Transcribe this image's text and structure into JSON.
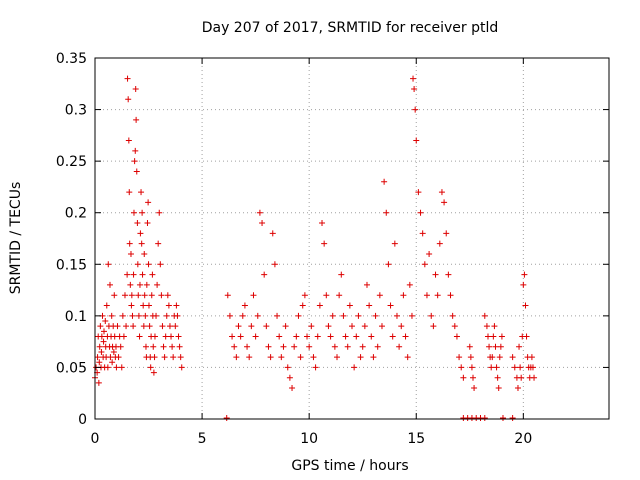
{
  "chart_data": {
    "type": "scatter",
    "title": "Day 207 of 2017, SRMTID for receiver ptld",
    "xlabel": "GPS time / hours",
    "ylabel": "SRMTID / TECUs",
    "xlim": [
      0,
      24
    ],
    "ylim": [
      0,
      0.35
    ],
    "xticks": [
      0,
      5,
      10,
      15,
      20
    ],
    "yticks": [
      0,
      0.05,
      0.1,
      0.15,
      0.2,
      0.25,
      0.3,
      0.35
    ],
    "xtick_labels": [
      "0",
      "5",
      "10",
      "15",
      "20"
    ],
    "ytick_labels": [
      "0",
      "0.05",
      "0.1",
      "0.15",
      "0.2",
      "0.25",
      "0.3",
      "0.35"
    ],
    "grid": true,
    "marker": "+",
    "color": "#dd0000",
    "series": [
      {
        "x": [
          0.0,
          0.05,
          0.1,
          0.12,
          0.15,
          0.18,
          0.2,
          0.22,
          0.25,
          0.28,
          0.3,
          0.32,
          0.35,
          0.38,
          0.4,
          0.42,
          0.45,
          0.48,
          0.5,
          0.52,
          0.55,
          0.58,
          0.6,
          0.62,
          0.65,
          0.68,
          0.7,
          0.72,
          0.75,
          0.78,
          0.8,
          0.82,
          0.85,
          0.88,
          0.9,
          0.92,
          0.95,
          0.98,
          1.0,
          1.05,
          1.1,
          1.15,
          1.2,
          1.25,
          1.3,
          1.35,
          1.4,
          1.45,
          1.5,
          1.52,
          1.55,
          1.58,
          1.6,
          1.62,
          1.65,
          1.68,
          1.7,
          1.72,
          1.75,
          1.78,
          1.8,
          1.82,
          1.85,
          1.88,
          1.9,
          1.92,
          1.95,
          1.98,
          2.0,
          2.02,
          2.05,
          2.08,
          2.1,
          2.12,
          2.15,
          2.18,
          2.2,
          2.22,
          2.25,
          2.28,
          2.3,
          2.32,
          2.35,
          2.38,
          2.4,
          2.42,
          2.45,
          2.48,
          2.5,
          2.52,
          2.55,
          2.58,
          2.6,
          2.62,
          2.65,
          2.68,
          2.7,
          2.72,
          2.75,
          2.78,
          2.8,
          2.85,
          2.9,
          2.95,
          3.0,
          3.05,
          3.1,
          3.15,
          3.2,
          3.25,
          3.3,
          3.35,
          3.4,
          3.45,
          3.5,
          3.55,
          3.6,
          3.65,
          3.7,
          3.75,
          3.8,
          3.85,
          3.9,
          3.95,
          4.0,
          4.05
        ],
        "y": [
          0.04,
          0.05,
          0.045,
          0.06,
          0.08,
          0.035,
          0.055,
          0.07,
          0.09,
          0.05,
          0.065,
          0.08,
          0.1,
          0.06,
          0.075,
          0.085,
          0.05,
          0.095,
          0.07,
          0.06,
          0.11,
          0.08,
          0.05,
          0.15,
          0.09,
          0.07,
          0.13,
          0.06,
          0.08,
          0.1,
          0.055,
          0.07,
          0.09,
          0.065,
          0.12,
          0.08,
          0.06,
          0.07,
          0.05,
          0.09,
          0.06,
          0.08,
          0.07,
          0.05,
          0.1,
          0.08,
          0.12,
          0.09,
          0.14,
          0.33,
          0.31,
          0.27,
          0.22,
          0.17,
          0.13,
          0.16,
          0.11,
          0.12,
          0.1,
          0.09,
          0.14,
          0.2,
          0.25,
          0.26,
          0.32,
          0.29,
          0.24,
          0.19,
          0.15,
          0.12,
          0.1,
          0.08,
          0.13,
          0.18,
          0.22,
          0.17,
          0.2,
          0.14,
          0.11,
          0.09,
          0.16,
          0.12,
          0.1,
          0.07,
          0.06,
          0.13,
          0.19,
          0.21,
          0.15,
          0.11,
          0.09,
          0.06,
          0.05,
          0.08,
          0.12,
          0.14,
          0.1,
          0.07,
          0.045,
          0.06,
          0.08,
          0.1,
          0.13,
          0.17,
          0.2,
          0.15,
          0.12,
          0.09,
          0.07,
          0.06,
          0.08,
          0.1,
          0.12,
          0.11,
          0.09,
          0.08,
          0.07,
          0.06,
          0.1,
          0.09,
          0.11,
          0.1,
          0.08,
          0.07,
          0.06,
          0.05
        ]
      },
      {
        "x": [
          6.2,
          6.3,
          6.4,
          6.5,
          6.6,
          6.7,
          6.8,
          6.9,
          7.0,
          7.1,
          7.2,
          7.3,
          7.4,
          7.5,
          7.6,
          7.7,
          7.8,
          7.9,
          8.0,
          8.1,
          8.2,
          8.3,
          8.4,
          8.5,
          8.6,
          8.7,
          8.8,
          8.9,
          9.0,
          9.1,
          9.2,
          9.3,
          9.4,
          9.5,
          9.6,
          9.7,
          9.8,
          9.9,
          10.0,
          10.1,
          10.2,
          10.3,
          10.4,
          10.5,
          10.6,
          10.7,
          10.8,
          10.9,
          11.0,
          11.1,
          11.2,
          11.3,
          11.4,
          11.5,
          11.6,
          11.7,
          11.8,
          11.9,
          12.0,
          12.1,
          12.2,
          12.3,
          12.4,
          12.5,
          12.6,
          12.7,
          12.8,
          12.9,
          13.0,
          13.1,
          13.2,
          13.3,
          13.4,
          13.5,
          13.6,
          13.7,
          13.8,
          13.9,
          14.0,
          14.1,
          14.2,
          14.3,
          14.4,
          14.5,
          14.6,
          14.7,
          14.8,
          14.85,
          14.9,
          14.95,
          15.0,
          15.1,
          15.2,
          15.3,
          15.4,
          15.5,
          15.6,
          15.7,
          15.8,
          15.9,
          16.0,
          16.1,
          16.2,
          16.3,
          16.4,
          16.5,
          16.6,
          16.7,
          16.8,
          16.9,
          17.0,
          17.1,
          17.2
        ],
        "y": [
          0.12,
          0.1,
          0.08,
          0.07,
          0.06,
          0.09,
          0.08,
          0.1,
          0.11,
          0.07,
          0.06,
          0.09,
          0.12,
          0.08,
          0.1,
          0.2,
          0.19,
          0.14,
          0.09,
          0.07,
          0.06,
          0.18,
          0.15,
          0.1,
          0.08,
          0.06,
          0.07,
          0.09,
          0.05,
          0.04,
          0.03,
          0.07,
          0.08,
          0.1,
          0.06,
          0.11,
          0.12,
          0.08,
          0.07,
          0.09,
          0.06,
          0.05,
          0.08,
          0.11,
          0.19,
          0.17,
          0.12,
          0.09,
          0.08,
          0.1,
          0.07,
          0.06,
          0.12,
          0.14,
          0.1,
          0.08,
          0.07,
          0.11,
          0.09,
          0.05,
          0.08,
          0.1,
          0.06,
          0.07,
          0.09,
          0.13,
          0.11,
          0.08,
          0.06,
          0.1,
          0.07,
          0.12,
          0.09,
          0.23,
          0.2,
          0.15,
          0.11,
          0.08,
          0.17,
          0.1,
          0.07,
          0.09,
          0.12,
          0.08,
          0.06,
          0.13,
          0.1,
          0.33,
          0.32,
          0.3,
          0.27,
          0.22,
          0.2,
          0.18,
          0.15,
          0.12,
          0.16,
          0.1,
          0.09,
          0.14,
          0.12,
          0.17,
          0.22,
          0.21,
          0.18,
          0.14,
          0.12,
          0.1,
          0.09,
          0.08,
          0.06,
          0.05,
          0.04
        ]
      },
      {
        "x": [
          17.5,
          17.55,
          17.6,
          17.65,
          17.7,
          18.2,
          18.3,
          18.35,
          18.4,
          18.45,
          18.5,
          18.55,
          18.6,
          18.65,
          18.7,
          18.75,
          18.8,
          18.85,
          18.9,
          18.95,
          19.0,
          19.5,
          19.6,
          19.7,
          19.75,
          19.8,
          19.85,
          19.9,
          19.95,
          20.0,
          20.05,
          20.1,
          20.15,
          20.2,
          20.25,
          20.3,
          20.35,
          20.4,
          20.45,
          20.5
        ],
        "y": [
          0.07,
          0.06,
          0.05,
          0.04,
          0.03,
          0.1,
          0.09,
          0.08,
          0.07,
          0.06,
          0.05,
          0.06,
          0.08,
          0.09,
          0.07,
          0.05,
          0.04,
          0.03,
          0.06,
          0.07,
          0.08,
          0.06,
          0.05,
          0.04,
          0.03,
          0.07,
          0.05,
          0.04,
          0.08,
          0.13,
          0.14,
          0.11,
          0.08,
          0.06,
          0.05,
          0.04,
          0.05,
          0.06,
          0.05,
          0.04
        ]
      }
    ],
    "baseline_x": [
      6.15,
      17.2,
      17.4,
      17.6,
      17.8,
      18.0,
      18.2,
      19.05,
      19.5
    ]
  }
}
